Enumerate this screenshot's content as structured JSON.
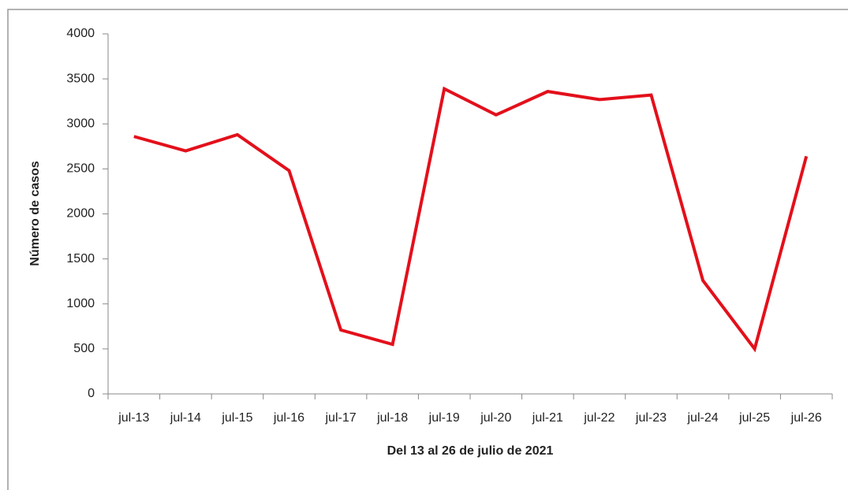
{
  "chart_data": {
    "type": "line",
    "xlabel": "Del 13 al 26 de julio de 2021",
    "ylabel": "Número de casos",
    "categories": [
      "jul-13",
      "jul-14",
      "jul-15",
      "jul-16",
      "jul-17",
      "jul-18",
      "jul-19",
      "jul-20",
      "jul-21",
      "jul-22",
      "jul-23",
      "jul-24",
      "jul-25",
      "jul-26"
    ],
    "series": [
      {
        "name": "Número de casos",
        "color": "#e3101b",
        "values": [
          2860,
          2700,
          2880,
          2480,
          710,
          550,
          3390,
          3100,
          3360,
          3270,
          3320,
          1260,
          500,
          2640
        ]
      }
    ],
    "ylim": [
      0,
      4000
    ],
    "yticks": [
      0,
      500,
      1000,
      1500,
      2000,
      2500,
      3000,
      3500,
      4000
    ],
    "grid": false,
    "legend": false
  }
}
